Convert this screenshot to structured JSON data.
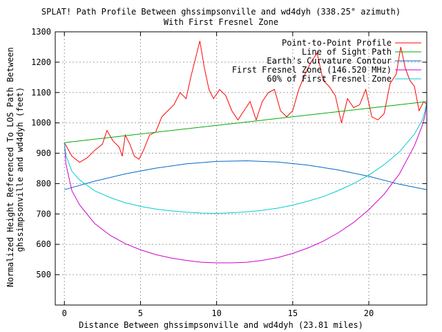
{
  "chart_data": {
    "type": "line",
    "title": "SPLAT! Path Profile Between ghssimpsonville and wd4dyh (338.25° azimuth)",
    "subtitle": "With First Fresnel Zone",
    "xlabel": "Distance Between ghssimpsonville and wd4dyh (23.81 miles)",
    "ylabel_lines": [
      "Normalized Height Referenced To LOS Path Between",
      "ghssimpsonville and wd4dyh (feet)"
    ],
    "xlim": [
      -0.6,
      23.81
    ],
    "ylim": [
      400,
      1300
    ],
    "x_ticks": [
      0,
      5,
      10,
      15,
      20
    ],
    "y_ticks": [
      500,
      600,
      700,
      800,
      900,
      1000,
      1100,
      1200,
      1300
    ],
    "grid": true,
    "legend_position": "top-right",
    "series": [
      {
        "name": "Point-to-Point Profile",
        "color": "#ff0000",
        "x": [
          0,
          0.5,
          1,
          1.5,
          2,
          2.5,
          2.8,
          3.2,
          3.6,
          3.8,
          4.0,
          4.3,
          4.6,
          4.9,
          5.2,
          5.6,
          6.0,
          6.4,
          6.8,
          7.2,
          7.6,
          8.0,
          8.3,
          8.6,
          8.9,
          9.2,
          9.5,
          9.8,
          10.2,
          10.6,
          11.0,
          11.4,
          11.8,
          12.2,
          12.6,
          13.0,
          13.4,
          13.8,
          14.2,
          14.6,
          15.0,
          15.4,
          15.8,
          16.2,
          16.6,
          17.0,
          17.4,
          17.8,
          18.2,
          18.6,
          19.0,
          19.4,
          19.8,
          20.2,
          20.6,
          21.0,
          21.4,
          21.8,
          22.1,
          22.4,
          22.7,
          23.0,
          23.3,
          23.6,
          23.81
        ],
        "y": [
          935,
          890,
          870,
          885,
          910,
          930,
          975,
          940,
          920,
          890,
          960,
          930,
          890,
          880,
          910,
          960,
          970,
          1020,
          1040,
          1060,
          1100,
          1080,
          1150,
          1210,
          1270,
          1180,
          1110,
          1080,
          1110,
          1090,
          1040,
          1010,
          1040,
          1070,
          1010,
          1070,
          1100,
          1110,
          1040,
          1020,
          1040,
          1110,
          1160,
          1200,
          1230,
          1140,
          1120,
          1090,
          1000,
          1080,
          1050,
          1060,
          1110,
          1020,
          1010,
          1030,
          1130,
          1160,
          1250,
          1180,
          1140,
          1120,
          1040,
          1070,
          1060
        ]
      },
      {
        "name": "Line of Sight Path",
        "color": "#00aa00",
        "x": [
          0,
          23.81
        ],
        "y": [
          935,
          1070
        ]
      },
      {
        "name": "Earth's Curvature Contour",
        "color": "#0066cc",
        "x": [
          0,
          2,
          4,
          6,
          8,
          10,
          12,
          14,
          16,
          18,
          20,
          22,
          23.81
        ],
        "y": [
          780,
          808,
          832,
          851,
          865,
          873,
          875,
          871,
          861,
          845,
          824,
          798,
          780
        ]
      },
      {
        "name": "First Fresnel Zone (146.520 MHz)",
        "color": "#cc00cc",
        "x": [
          0,
          0.1,
          0.5,
          1,
          2,
          3,
          4,
          5,
          6,
          7,
          8,
          9,
          10,
          11,
          12,
          13,
          14,
          15,
          16,
          17,
          18,
          19,
          20,
          21,
          22,
          23,
          23.5,
          23.7,
          23.81
        ],
        "y": [
          935,
          865,
          776,
          730,
          668,
          630,
          602,
          582,
          566,
          555,
          547,
          541,
          539,
          539,
          541,
          547,
          556,
          570,
          588,
          610,
          638,
          672,
          714,
          765,
          831,
          925,
          990,
          1026,
          1070
        ]
      },
      {
        "name": "60% of First Fresnel Zone",
        "color": "#00cccc",
        "x": [
          0,
          0.1,
          0.5,
          1,
          2,
          3,
          4,
          5,
          6,
          7,
          8,
          9,
          10,
          11,
          12,
          13,
          14,
          15,
          16,
          17,
          18,
          19,
          20,
          21,
          22,
          23,
          23.5,
          23.7,
          23.81
        ],
        "y": [
          935,
          893,
          840,
          812,
          776,
          754,
          737,
          725,
          716,
          710,
          706,
          703,
          702,
          704,
          707,
          712,
          719,
          729,
          742,
          757,
          777,
          800,
          828,
          862,
          904,
          963,
          1008,
          1040,
          1070
        ]
      }
    ],
    "legend_entries": [
      "Point-to-Point Profile",
      "Line of Sight Path",
      "Earth's Curvature Contour",
      "First Fresnel Zone (146.520 MHz)",
      "60% of First Fresnel Zone"
    ]
  }
}
